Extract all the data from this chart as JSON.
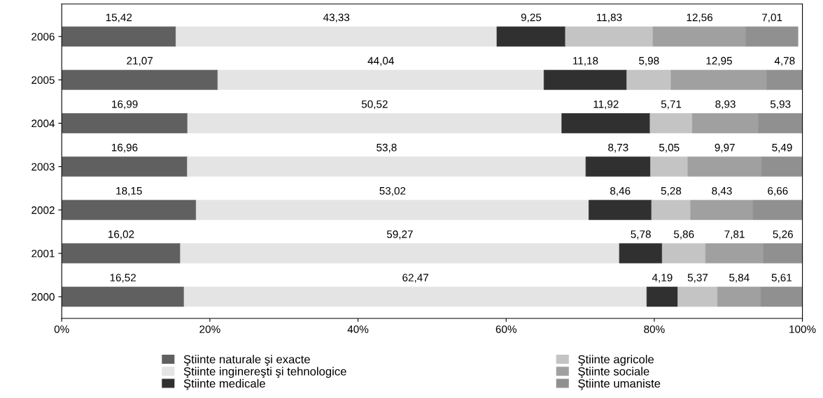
{
  "chart_data": {
    "type": "bar",
    "orientation": "horizontal",
    "stacked": true,
    "categories": [
      "2006",
      "2005",
      "2004",
      "2003",
      "2002",
      "2001",
      "2000"
    ],
    "xlim": [
      0,
      100
    ],
    "xticks": [
      {
        "value": 0,
        "label": "0%"
      },
      {
        "value": 20,
        "label": "20%"
      },
      {
        "value": 40,
        "label": "40%"
      },
      {
        "value": 60,
        "label": "60%"
      },
      {
        "value": 80,
        "label": "80%"
      },
      {
        "value": 100,
        "label": "100%"
      }
    ],
    "legend": "bottom",
    "series": [
      {
        "name": "Ştiinte naturale şi exacte",
        "color": "#606060",
        "values": [
          15.42,
          21.07,
          16.99,
          16.96,
          18.15,
          16.02,
          16.52
        ],
        "value_labels": [
          "15,42",
          "21,07",
          "16,99",
          "16,96",
          "18,15",
          "16,02",
          "16,52"
        ]
      },
      {
        "name": "Ştiinte inginereşti şi tehnologice",
        "color": "#e4e4e4",
        "values": [
          43.33,
          44.04,
          50.52,
          53.8,
          53.02,
          59.27,
          62.47
        ],
        "value_labels": [
          "43,33",
          "44,04",
          "50,52",
          "53,8",
          "53,02",
          "59,27",
          "62,47"
        ]
      },
      {
        "name": "Ştiinte medicale",
        "color": "#303030",
        "values": [
          9.25,
          11.18,
          11.92,
          8.73,
          8.46,
          5.78,
          4.19
        ],
        "value_labels": [
          "9,25",
          "11,18",
          "11,92",
          "8,73",
          "8,46",
          "5,78",
          "4,19"
        ]
      },
      {
        "name": "Ştiinte agricole",
        "color": "#c4c4c4",
        "values": [
          11.83,
          5.98,
          5.71,
          5.05,
          5.28,
          5.86,
          5.37
        ],
        "value_labels": [
          "11,83",
          "5,98",
          "5,71",
          "5,05",
          "5,28",
          "5,86",
          "5,37"
        ]
      },
      {
        "name": "Ştiinte sociale",
        "color": "#a0a0a0",
        "values": [
          12.56,
          12.95,
          8.93,
          9.97,
          8.43,
          7.81,
          5.84
        ],
        "value_labels": [
          "12,56",
          "12,95",
          "8,93",
          "9,97",
          "8,43",
          "7,81",
          "5,84"
        ]
      },
      {
        "name": "Ştiinte umaniste",
        "color": "#909090",
        "values": [
          7.01,
          4.78,
          5.93,
          5.49,
          6.66,
          5.26,
          5.61
        ],
        "value_labels": [
          "7,01",
          "4,78",
          "5,93",
          "5,49",
          "6,66",
          "5,26",
          "5,61"
        ]
      }
    ]
  }
}
